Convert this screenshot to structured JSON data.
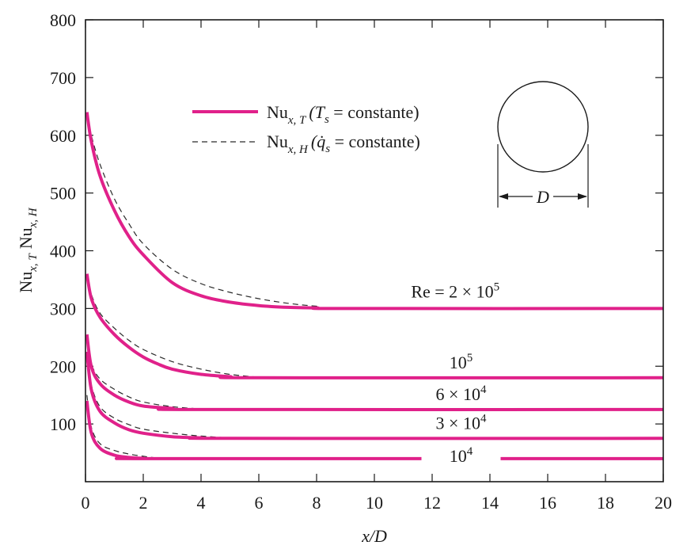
{
  "chart_data": {
    "type": "line",
    "xlabel": "x/D",
    "ylabel": "Nu",
    "ylabel_subs": [
      "x, T",
      "x, H"
    ],
    "xlim": [
      0,
      20
    ],
    "ylim": [
      0,
      800
    ],
    "x_ticks": [
      0,
      2,
      4,
      6,
      8,
      10,
      12,
      14,
      16,
      18,
      20
    ],
    "y_ticks": [
      100,
      200,
      300,
      400,
      500,
      600,
      700,
      800
    ],
    "legend": {
      "placement": "upper-center",
      "solid": {
        "main": "Nu",
        "sub": "x, T",
        "paren": "(T",
        "psub": "s",
        "rest": " = constante)"
      },
      "dashed": {
        "main": "Nu",
        "sub": "x, H",
        "paren": "(q̇",
        "psub": "s",
        "rest": " = constante)"
      }
    },
    "inset": {
      "shape": "circle",
      "dimension_label": "D"
    },
    "series": [
      {
        "label_main": "Re = 2 × 10",
        "label_exp": "5",
        "fully_developed": 300,
        "solid": [
          [
            0.05,
            640
          ],
          [
            0.2,
            590
          ],
          [
            0.5,
            530
          ],
          [
            1,
            470
          ],
          [
            1.5,
            425
          ],
          [
            2,
            393
          ],
          [
            3,
            345
          ],
          [
            4,
            322
          ],
          [
            5,
            311
          ],
          [
            6,
            305
          ],
          [
            7,
            302
          ],
          [
            8,
            301
          ],
          [
            9,
            300
          ],
          [
            20,
            300
          ]
        ],
        "dashed": [
          [
            0.05,
            630
          ],
          [
            0.2,
            600
          ],
          [
            0.5,
            550
          ],
          [
            1,
            490
          ],
          [
            1.5,
            447
          ],
          [
            2,
            412
          ],
          [
            3,
            368
          ],
          [
            4,
            343
          ],
          [
            5,
            328
          ],
          [
            6,
            317
          ],
          [
            7,
            309
          ],
          [
            8,
            304
          ],
          [
            9,
            301
          ],
          [
            20,
            300
          ]
        ]
      },
      {
        "label_main": "10",
        "label_exp": "5",
        "fully_developed": 180,
        "solid": [
          [
            0.05,
            360
          ],
          [
            0.2,
            318
          ],
          [
            0.5,
            285
          ],
          [
            1,
            255
          ],
          [
            1.5,
            233
          ],
          [
            2,
            216
          ],
          [
            2.5,
            204
          ],
          [
            3,
            195
          ],
          [
            4,
            186
          ],
          [
            5,
            182
          ],
          [
            6,
            180
          ],
          [
            20,
            180
          ]
        ],
        "dashed": [
          [
            0.05,
            355
          ],
          [
            0.2,
            325
          ],
          [
            0.5,
            292
          ],
          [
            1,
            266
          ],
          [
            1.5,
            245
          ],
          [
            2,
            229
          ],
          [
            3,
            208
          ],
          [
            4,
            195
          ],
          [
            5,
            186
          ],
          [
            6,
            181
          ],
          [
            6.5,
            180
          ],
          [
            20,
            180
          ]
        ]
      },
      {
        "label_main": "6 × 10",
        "label_exp": "4",
        "fully_developed": 125,
        "solid": [
          [
            0.05,
            255
          ],
          [
            0.2,
            200
          ],
          [
            0.5,
            170
          ],
          [
            1,
            150
          ],
          [
            1.5,
            138
          ],
          [
            2,
            131
          ],
          [
            3,
            127
          ],
          [
            4,
            125
          ],
          [
            20,
            125
          ]
        ],
        "dashed": [
          [
            0.05,
            250
          ],
          [
            0.2,
            205
          ],
          [
            0.5,
            178
          ],
          [
            1,
            160
          ],
          [
            1.5,
            147
          ],
          [
            2,
            138
          ],
          [
            3,
            130
          ],
          [
            4,
            126
          ],
          [
            4.5,
            125
          ],
          [
            20,
            125
          ]
        ]
      },
      {
        "label_main": "3 × 10",
        "label_exp": "4",
        "fully_developed": 75,
        "solid": [
          [
            0.05,
            225
          ],
          [
            0.2,
            160
          ],
          [
            0.5,
            122
          ],
          [
            1,
            102
          ],
          [
            1.5,
            90
          ],
          [
            2,
            84
          ],
          [
            3,
            78
          ],
          [
            4,
            76
          ],
          [
            5,
            75
          ],
          [
            20,
            75
          ]
        ],
        "dashed": [
          [
            0.05,
            220
          ],
          [
            0.2,
            168
          ],
          [
            0.5,
            130
          ],
          [
            1,
            110
          ],
          [
            1.5,
            99
          ],
          [
            2,
            91
          ],
          [
            3,
            84
          ],
          [
            4,
            79
          ],
          [
            5,
            76
          ],
          [
            6,
            75
          ],
          [
            20,
            75
          ]
        ]
      },
      {
        "label_main": "10",
        "label_exp": "4",
        "fully_developed": 40,
        "solid": [
          [
            0.05,
            140
          ],
          [
            0.2,
            85
          ],
          [
            0.5,
            58
          ],
          [
            1,
            46
          ],
          [
            1.5,
            42
          ],
          [
            2,
            40.5
          ],
          [
            2.5,
            40
          ],
          [
            20,
            40
          ]
        ],
        "dashed": [
          [
            0.05,
            150
          ],
          [
            0.2,
            95
          ],
          [
            0.5,
            66
          ],
          [
            1,
            54
          ],
          [
            1.5,
            48
          ],
          [
            2,
            44
          ],
          [
            2.5,
            41
          ],
          [
            3,
            40
          ],
          [
            20,
            40
          ]
        ]
      }
    ],
    "colors": {
      "solid": "#e0218a",
      "dashed": "#2a2a2a",
      "axis": "#1a1a1a"
    }
  }
}
